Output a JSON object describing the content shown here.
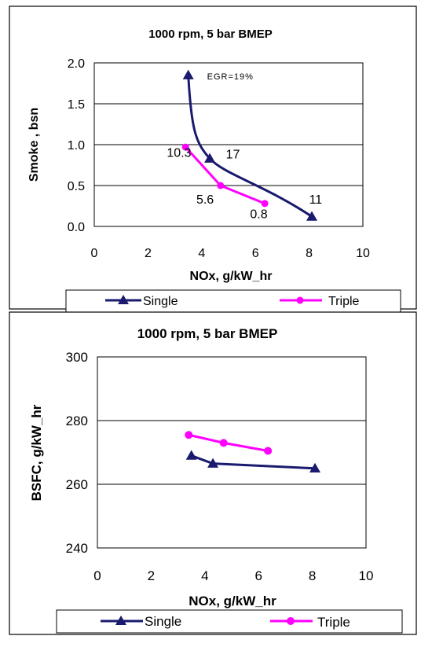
{
  "legend": {
    "single": "Single",
    "triple": "Triple"
  },
  "colors": {
    "single": "#1a1a6e",
    "triple": "#ff00ff",
    "frame": "#000000"
  },
  "chart_data": [
    {
      "type": "line",
      "title": "1000 rpm,  5 bar BMEP",
      "xlabel": "NOx, g/kW_hr",
      "ylabel": "Smoke , bsn",
      "xlim": [
        0,
        10
      ],
      "ylim": [
        0,
        2
      ],
      "xticks": [
        "0",
        "2",
        "4",
        "6",
        "8",
        "10"
      ],
      "yticks": [
        "0.0",
        "0.5",
        "1.0",
        "1.5",
        "2.0"
      ],
      "grid": "horizontal",
      "legend_position": "bottom",
      "series": [
        {
          "name": "Single",
          "marker": "triangle",
          "x": [
            3.5,
            4.3,
            8.1
          ],
          "y": [
            1.85,
            0.83,
            0.12
          ]
        },
        {
          "name": "Triple",
          "marker": "circle",
          "x": [
            3.4,
            4.7,
            6.35
          ],
          "y": [
            0.97,
            0.5,
            0.28
          ]
        }
      ],
      "annotations": [
        {
          "text": "EGR=19%",
          "x": 4.2,
          "y": 1.8
        },
        {
          "text": "10.3",
          "x": 2.7,
          "y": 0.85
        },
        {
          "text": "17",
          "x": 4.9,
          "y": 0.83
        },
        {
          "text": "5.6",
          "x": 3.8,
          "y": 0.28
        },
        {
          "text": "0.8",
          "x": 5.8,
          "y": 0.1
        },
        {
          "text": "11",
          "x": 8.0,
          "y": 0.28
        }
      ]
    },
    {
      "type": "line",
      "title": "1000 rpm,  5 bar BMEP",
      "xlabel": "NOx, g/kW_hr",
      "ylabel": "BSFC, g/kW_hr",
      "xlim": [
        0,
        10
      ],
      "ylim": [
        240,
        300
      ],
      "xticks": [
        "0",
        "2",
        "4",
        "6",
        "8",
        "10"
      ],
      "yticks": [
        "240",
        "260",
        "280",
        "300"
      ],
      "grid": "horizontal",
      "legend_position": "bottom",
      "series": [
        {
          "name": "Single",
          "marker": "triangle",
          "x": [
            3.5,
            4.3,
            8.1
          ],
          "y": [
            269,
            266.5,
            265
          ]
        },
        {
          "name": "Triple",
          "marker": "circle",
          "x": [
            3.4,
            4.7,
            6.35
          ],
          "y": [
            275.5,
            273,
            270.5
          ]
        }
      ],
      "annotations": []
    }
  ]
}
